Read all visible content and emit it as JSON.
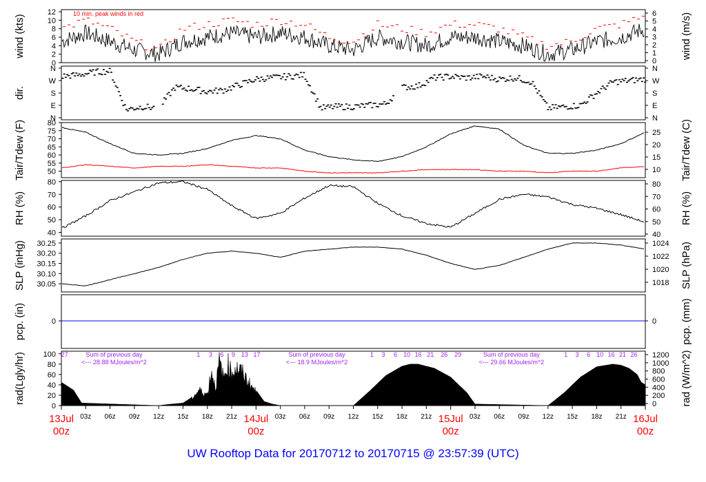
{
  "colors": {
    "wind": "#000000",
    "peak": "#ff0000",
    "tdew": "#ff0000",
    "pcp": "#0000ff",
    "labels": "#ff0000",
    "annot": "#a020f0",
    "footer": "#0000ff"
  },
  "footer_title": "UW Rooftop Data for 20170712  to  20170715 @ 23:57:39  (UTC)",
  "chart_data": [
    {
      "id": "wind",
      "type": "line",
      "ylabel": "wind (kts)",
      "ylabel_right": "wind (m/s)",
      "ylim": [
        0,
        12.5
      ],
      "yticks": [
        "0",
        "2",
        "4",
        "6",
        "8",
        "10",
        "12"
      ],
      "yticks_right": [
        "0",
        "1",
        "2",
        "3",
        "4",
        "5",
        "6"
      ],
      "annotation": "10 min. peak winds in red",
      "x_hours": [
        0,
        3,
        6,
        9,
        12,
        15,
        18,
        21,
        24,
        27,
        30,
        33,
        36,
        39,
        42,
        45,
        48,
        51,
        54,
        57,
        60,
        63,
        66,
        69,
        72
      ],
      "series": [
        {
          "role": "wind",
          "values": [
            5,
            7,
            5,
            3,
            2,
            5,
            6,
            7,
            6,
            7,
            6,
            4,
            3,
            6,
            5,
            4,
            6,
            6,
            5,
            4,
            2,
            3,
            5,
            6,
            8
          ]
        },
        {
          "role": "peak",
          "values": [
            8,
            10,
            8,
            5,
            3,
            8,
            9,
            10,
            9,
            10,
            9,
            6,
            5,
            9,
            8,
            7,
            9,
            9,
            8,
            6,
            4,
            5,
            8,
            9,
            11
          ]
        }
      ]
    },
    {
      "id": "dir",
      "type": "scatter",
      "ylabel": "dir.",
      "yticks": [
        "N",
        "E",
        "S",
        "W",
        "N"
      ],
      "x_hours": [
        0,
        2,
        4,
        6,
        8,
        10,
        12,
        14,
        16,
        18,
        20,
        22,
        24,
        26,
        28,
        30,
        32,
        34,
        36,
        38,
        40,
        42,
        44,
        46,
        48,
        50,
        52,
        54,
        56,
        58,
        60,
        62,
        64,
        66,
        68,
        70,
        72
      ],
      "values_deg": [
        300,
        310,
        330,
        340,
        60,
        80,
        70,
        220,
        210,
        190,
        200,
        240,
        280,
        290,
        300,
        310,
        70,
        80,
        80,
        90,
        100,
        220,
        230,
        290,
        300,
        290,
        300,
        280,
        290,
        260,
        70,
        80,
        90,
        180,
        260,
        270,
        280
      ]
    },
    {
      "id": "temp",
      "type": "line",
      "ylabel": "Tair/Tdew (F)",
      "ylabel_right": "Tair/Tdew (C)",
      "ylim": [
        46,
        80
      ],
      "yticks": [
        "50",
        "55",
        "60",
        "65",
        "70",
        "75",
        "80"
      ],
      "yticks_right": [
        "10",
        "15",
        "20",
        "25"
      ],
      "x_hours": [
        0,
        3,
        6,
        9,
        12,
        15,
        18,
        21,
        24,
        27,
        30,
        33,
        36,
        39,
        42,
        45,
        48,
        51,
        54,
        57,
        60,
        63,
        66,
        69,
        72
      ],
      "series": [
        {
          "name": "Tair",
          "values": [
            77,
            74,
            67,
            61,
            60,
            61,
            64,
            69,
            72,
            70,
            63,
            59,
            57,
            56,
            59,
            65,
            73,
            78,
            76,
            66,
            61,
            61,
            63,
            67,
            74
          ]
        },
        {
          "name": "Tdew",
          "values": [
            52,
            54,
            53,
            52,
            53,
            53,
            54,
            53,
            52,
            52,
            50,
            49,
            49,
            49,
            50,
            51,
            51,
            51,
            50,
            50,
            49,
            50,
            50,
            52,
            53
          ]
        }
      ]
    },
    {
      "id": "rh",
      "type": "line",
      "ylabel": "RH (%)",
      "ylabel_right": "RH (%)",
      "ylim": [
        37,
        81
      ],
      "yticks": [
        "40",
        "50",
        "60",
        "70",
        "80"
      ],
      "yticks_right": [
        "40",
        "50",
        "60",
        "70",
        "80"
      ],
      "x_hours": [
        0,
        3,
        6,
        9,
        12,
        15,
        18,
        21,
        24,
        27,
        30,
        33,
        36,
        39,
        42,
        45,
        48,
        51,
        54,
        57,
        60,
        63,
        66,
        69,
        72
      ],
      "values": [
        43,
        53,
        65,
        72,
        79,
        80,
        74,
        61,
        51,
        55,
        67,
        77,
        76,
        63,
        53,
        47,
        44,
        55,
        66,
        70,
        68,
        62,
        59,
        54,
        48
      ]
    },
    {
      "id": "slp",
      "type": "line",
      "ylabel": "SLP (inHg)",
      "ylabel_right": "SLP (hPa)",
      "ylim": [
        30.01,
        30.27
      ],
      "yticks": [
        "30.05",
        "30.10",
        "30.15",
        "30.20",
        "30.25"
      ],
      "yticks_right": [
        "1018",
        "1020",
        "1022",
        "1024"
      ],
      "x_hours": [
        0,
        3,
        6,
        9,
        12,
        15,
        18,
        21,
        24,
        27,
        30,
        33,
        36,
        39,
        42,
        45,
        48,
        51,
        54,
        57,
        60,
        63,
        66,
        69,
        72
      ],
      "values": [
        30.05,
        30.04,
        30.07,
        30.1,
        30.13,
        30.17,
        30.2,
        30.21,
        30.2,
        30.18,
        30.21,
        30.22,
        30.23,
        30.23,
        30.22,
        30.19,
        30.15,
        30.12,
        30.14,
        30.18,
        30.22,
        30.25,
        30.25,
        30.24,
        30.22
      ]
    },
    {
      "id": "pcp",
      "type": "line",
      "ylabel": "pcp. (in)",
      "ylabel_right": "pcp. (mm)",
      "yticks": [
        "0"
      ],
      "yticks_right": [
        "0"
      ],
      "x_hours": [
        0,
        72
      ],
      "values": [
        0,
        0
      ]
    },
    {
      "id": "rad",
      "type": "area",
      "ylabel": "rad(Lgly/hr)",
      "ylabel_right": "rad (W/m^2)",
      "ylim": [
        0,
        105
      ],
      "yticks": [
        "0",
        "20",
        "40",
        "60",
        "80",
        "100"
      ],
      "yticks_right": [
        "0",
        "200",
        "400",
        "600",
        "800",
        "1000",
        "1200"
      ],
      "top_labels": [
        {
          "x": 0.4,
          "text": "27"
        },
        {
          "x": 16.9,
          "text": "1"
        },
        {
          "x": 18.4,
          "text": "3"
        },
        {
          "x": 19.8,
          "text": "6"
        },
        {
          "x": 21.2,
          "text": "9"
        },
        {
          "x": 22.6,
          "text": "13"
        },
        {
          "x": 24.1,
          "text": "17"
        },
        {
          "x": 38.3,
          "text": "1"
        },
        {
          "x": 39.7,
          "text": "3"
        },
        {
          "x": 41.2,
          "text": "6"
        },
        {
          "x": 42.6,
          "text": "10"
        },
        {
          "x": 44.0,
          "text": "16"
        },
        {
          "x": 45.5,
          "text": "21"
        },
        {
          "x": 47.2,
          "text": "26"
        },
        {
          "x": 48.9,
          "text": "29"
        },
        {
          "x": 62.2,
          "text": "1"
        },
        {
          "x": 63.6,
          "text": "3"
        },
        {
          "x": 65.0,
          "text": "6"
        },
        {
          "x": 66.4,
          "text": "10"
        },
        {
          "x": 67.8,
          "text": "16"
        },
        {
          "x": 69.2,
          "text": "21"
        },
        {
          "x": 70.6,
          "text": "26"
        }
      ],
      "sums": [
        {
          "x": 6.5,
          "line1": "Sum of previous day",
          "line2": "<--- 28.88 MJoules/m^2"
        },
        {
          "x": 31.5,
          "line1": "Sum of previous day",
          "line2": "<--- 18.9 MJoules/m^2"
        },
        {
          "x": 55.5,
          "line1": "Sum of previous day",
          "line2": "<--- 29.66 MJoules/m^2"
        }
      ],
      "x_hours": [
        0,
        1.5,
        2.5,
        12,
        13,
        15,
        16,
        17,
        17.5,
        18,
        18.5,
        19,
        19.5,
        20,
        20.5,
        21,
        21.5,
        22,
        22.5,
        23,
        24,
        25,
        26,
        27,
        36,
        38,
        40,
        42,
        43,
        44,
        46,
        48,
        50,
        51,
        60,
        62,
        64,
        66,
        68,
        69,
        70,
        71,
        71.5,
        72
      ],
      "values": [
        45,
        30,
        5,
        0,
        2,
        5,
        15,
        35,
        30,
        25,
        80,
        40,
        100,
        60,
        95,
        75,
        85,
        80,
        70,
        55,
        30,
        8,
        3,
        0,
        0,
        28,
        58,
        76,
        80,
        80,
        72,
        55,
        25,
        3,
        0,
        25,
        55,
        75,
        80,
        78,
        72,
        60,
        45,
        40
      ]
    }
  ],
  "x_axis": {
    "tick_labels": [
      "03z",
      "06z",
      "09z",
      "12z",
      "15z",
      "18z",
      "21z",
      "03z",
      "06z",
      "09z",
      "12z",
      "15z",
      "18z",
      "21z",
      "03z",
      "06z",
      "09z",
      "12z",
      "15z",
      "18z",
      "21z"
    ],
    "tick_hours": [
      3,
      6,
      9,
      12,
      15,
      18,
      21,
      27,
      30,
      33,
      36,
      39,
      42,
      45,
      51,
      54,
      57,
      60,
      63,
      66,
      69
    ],
    "day_labels": [
      {
        "hour": 0,
        "line1": "13Jul",
        "line2": "00z"
      },
      {
        "hour": 24,
        "line1": "14Jul",
        "line2": "00z"
      },
      {
        "hour": 48,
        "line1": "15Jul",
        "line2": "00z"
      },
      {
        "hour": 72,
        "line1": "16Jul",
        "line2": "00z"
      }
    ]
  }
}
